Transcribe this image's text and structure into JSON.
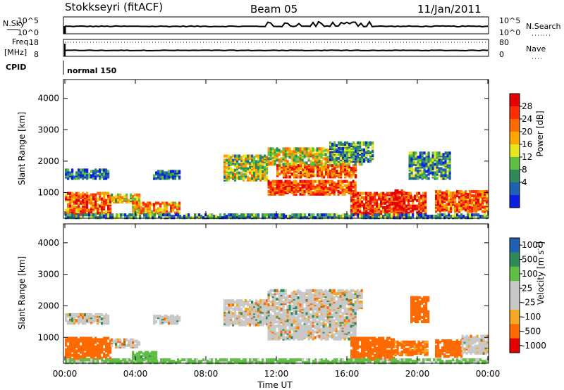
{
  "header": {
    "station": "Stokkseyri (fitACF)",
    "beam": "Beam 05",
    "date": "11/Jan/2011"
  },
  "status_panel": {
    "nsky_label": "N.Sky",
    "nsky_ticks": [
      "10^5",
      "10^0"
    ],
    "nsearch_label": "N.Search",
    "nsearch_ticks": [
      "10^5",
      "10^0"
    ],
    "freq_label_1": "Freq.",
    "freq_label_2": "[MHz]",
    "freq_ticks": [
      "18",
      "8"
    ],
    "nave_label": "Nave",
    "nave_ticks": [
      "80",
      "0"
    ],
    "cpid_label": "CPID",
    "cpid_value": "normal 150"
  },
  "colors": {
    "scale": [
      "#0a1ee6",
      "#1f5fb4",
      "#2e8b57",
      "#5fbf45",
      "#e6e61e",
      "#ffa500",
      "#ff6a00",
      "#ff2d00",
      "#e60000"
    ],
    "velocity_scale": [
      "#e60000",
      "#ff6a00",
      "#f5a623",
      "#c8c8c8",
      "#c8c8c8",
      "#5fbf45",
      "#2e8b57",
      "#1f5fb4"
    ],
    "ground_scatter": "#c8c8c8"
  },
  "chart_data": [
    {
      "type": "heatmap",
      "name": "Power",
      "ylabel": "Slant Range [km]",
      "yticks": [
        "1000",
        "2000",
        "3000",
        "4000"
      ],
      "ylim": [
        180,
        4600
      ],
      "xlim_hours": [
        0,
        24
      ],
      "colorbar_label": "Power [dB]",
      "colorbar_ticks": [
        "28",
        "24",
        "20",
        "16",
        "12",
        "8",
        "4"
      ],
      "colorbar_range": [
        0,
        32
      ],
      "echo_regions": [
        {
          "t0": 0.0,
          "t1": 2.6,
          "r0": 300,
          "r1": 1000,
          "level": 0.75
        },
        {
          "t0": 2.6,
          "t1": 4.2,
          "r0": 700,
          "r1": 950,
          "level": 0.55
        },
        {
          "t0": 0.0,
          "t1": 2.5,
          "r0": 1450,
          "r1": 1750,
          "level": 0.2
        },
        {
          "t0": 3.8,
          "t1": 6.5,
          "r0": 350,
          "r1": 700,
          "level": 0.65
        },
        {
          "t0": 5.0,
          "t1": 6.5,
          "r0": 1450,
          "r1": 1700,
          "level": 0.2
        },
        {
          "t0": 9.0,
          "t1": 11.5,
          "r0": 1400,
          "r1": 2200,
          "level": 0.45
        },
        {
          "t0": 11.5,
          "t1": 16.5,
          "r0": 950,
          "r1": 1400,
          "level": 0.8
        },
        {
          "t0": 12.0,
          "t1": 16.5,
          "r0": 1500,
          "r1": 1900,
          "level": 0.75
        },
        {
          "t0": 11.5,
          "t1": 16.8,
          "r0": 1900,
          "r1": 2400,
          "level": 0.5
        },
        {
          "t0": 15.0,
          "t1": 17.5,
          "r0": 2000,
          "r1": 2600,
          "level": 0.3
        },
        {
          "t0": 16.2,
          "t1": 20.5,
          "r0": 300,
          "r1": 1000,
          "level": 0.85
        },
        {
          "t0": 18.7,
          "t1": 19.3,
          "r0": 200,
          "r1": 1100,
          "level": 0.95
        },
        {
          "t0": 19.5,
          "t1": 21.8,
          "r0": 1450,
          "r1": 2300,
          "level": 0.3
        },
        {
          "t0": 21.0,
          "t1": 24.0,
          "r0": 400,
          "r1": 1050,
          "level": 0.75
        },
        {
          "t0": 0.0,
          "t1": 24.0,
          "r0": 200,
          "r1": 330,
          "level": 0.25
        }
      ]
    },
    {
      "type": "heatmap",
      "name": "Velocity",
      "ylabel": "Slant Range [km]",
      "yticks": [
        "1000",
        "2000",
        "3000",
        "4000"
      ],
      "ylim": [
        180,
        4600
      ],
      "xlim_hours": [
        0,
        24
      ],
      "colorbar_label": "Velocity [m s",
      "colorbar_unit_exp": "-1",
      "colorbar_unit_close": "]",
      "colorbar_ticks": [
        "1000",
        "500",
        "100",
        "25",
        "-25",
        "-100",
        "-500",
        "-1000"
      ],
      "echo_regions": [
        {
          "t0": 0.0,
          "t1": 2.6,
          "r0": 300,
          "r1": 1000,
          "v": -300
        },
        {
          "t0": 0.0,
          "t1": 2.5,
          "r0": 1450,
          "r1": 1750,
          "v": 0
        },
        {
          "t0": 2.6,
          "t1": 4.2,
          "r0": 700,
          "r1": 950,
          "v": 0
        },
        {
          "t0": 3.8,
          "t1": 5.2,
          "r0": 300,
          "r1": 550,
          "v": 80
        },
        {
          "t0": 5.0,
          "t1": 6.5,
          "r0": 1450,
          "r1": 1700,
          "v": 0
        },
        {
          "t0": 9.0,
          "t1": 11.5,
          "r0": 1400,
          "r1": 2200,
          "v": 0
        },
        {
          "t0": 11.5,
          "t1": 16.5,
          "r0": 950,
          "r1": 1900,
          "v": 0
        },
        {
          "t0": 11.5,
          "t1": 16.8,
          "r0": 1900,
          "r1": 2500,
          "v": 0
        },
        {
          "t0": 16.2,
          "t1": 18.7,
          "r0": 300,
          "r1": 1000,
          "v": -300
        },
        {
          "t0": 18.7,
          "t1": 20.6,
          "r0": 450,
          "r1": 900,
          "v": -120
        },
        {
          "t0": 19.6,
          "t1": 20.6,
          "r0": 1500,
          "r1": 2300,
          "v": -200
        },
        {
          "t0": 21.0,
          "t1": 22.5,
          "r0": 400,
          "r1": 900,
          "v": -300
        },
        {
          "t0": 22.5,
          "t1": 24.0,
          "r0": 500,
          "r1": 1050,
          "v": 0
        },
        {
          "t0": 0.0,
          "t1": 24.0,
          "r0": 200,
          "r1": 320,
          "v": 40
        }
      ]
    }
  ],
  "x_axis": {
    "ticks": [
      "00:00",
      "04:00",
      "08:00",
      "12:00",
      "16:00",
      "20:00",
      "00:00"
    ],
    "label": "Time UT"
  }
}
